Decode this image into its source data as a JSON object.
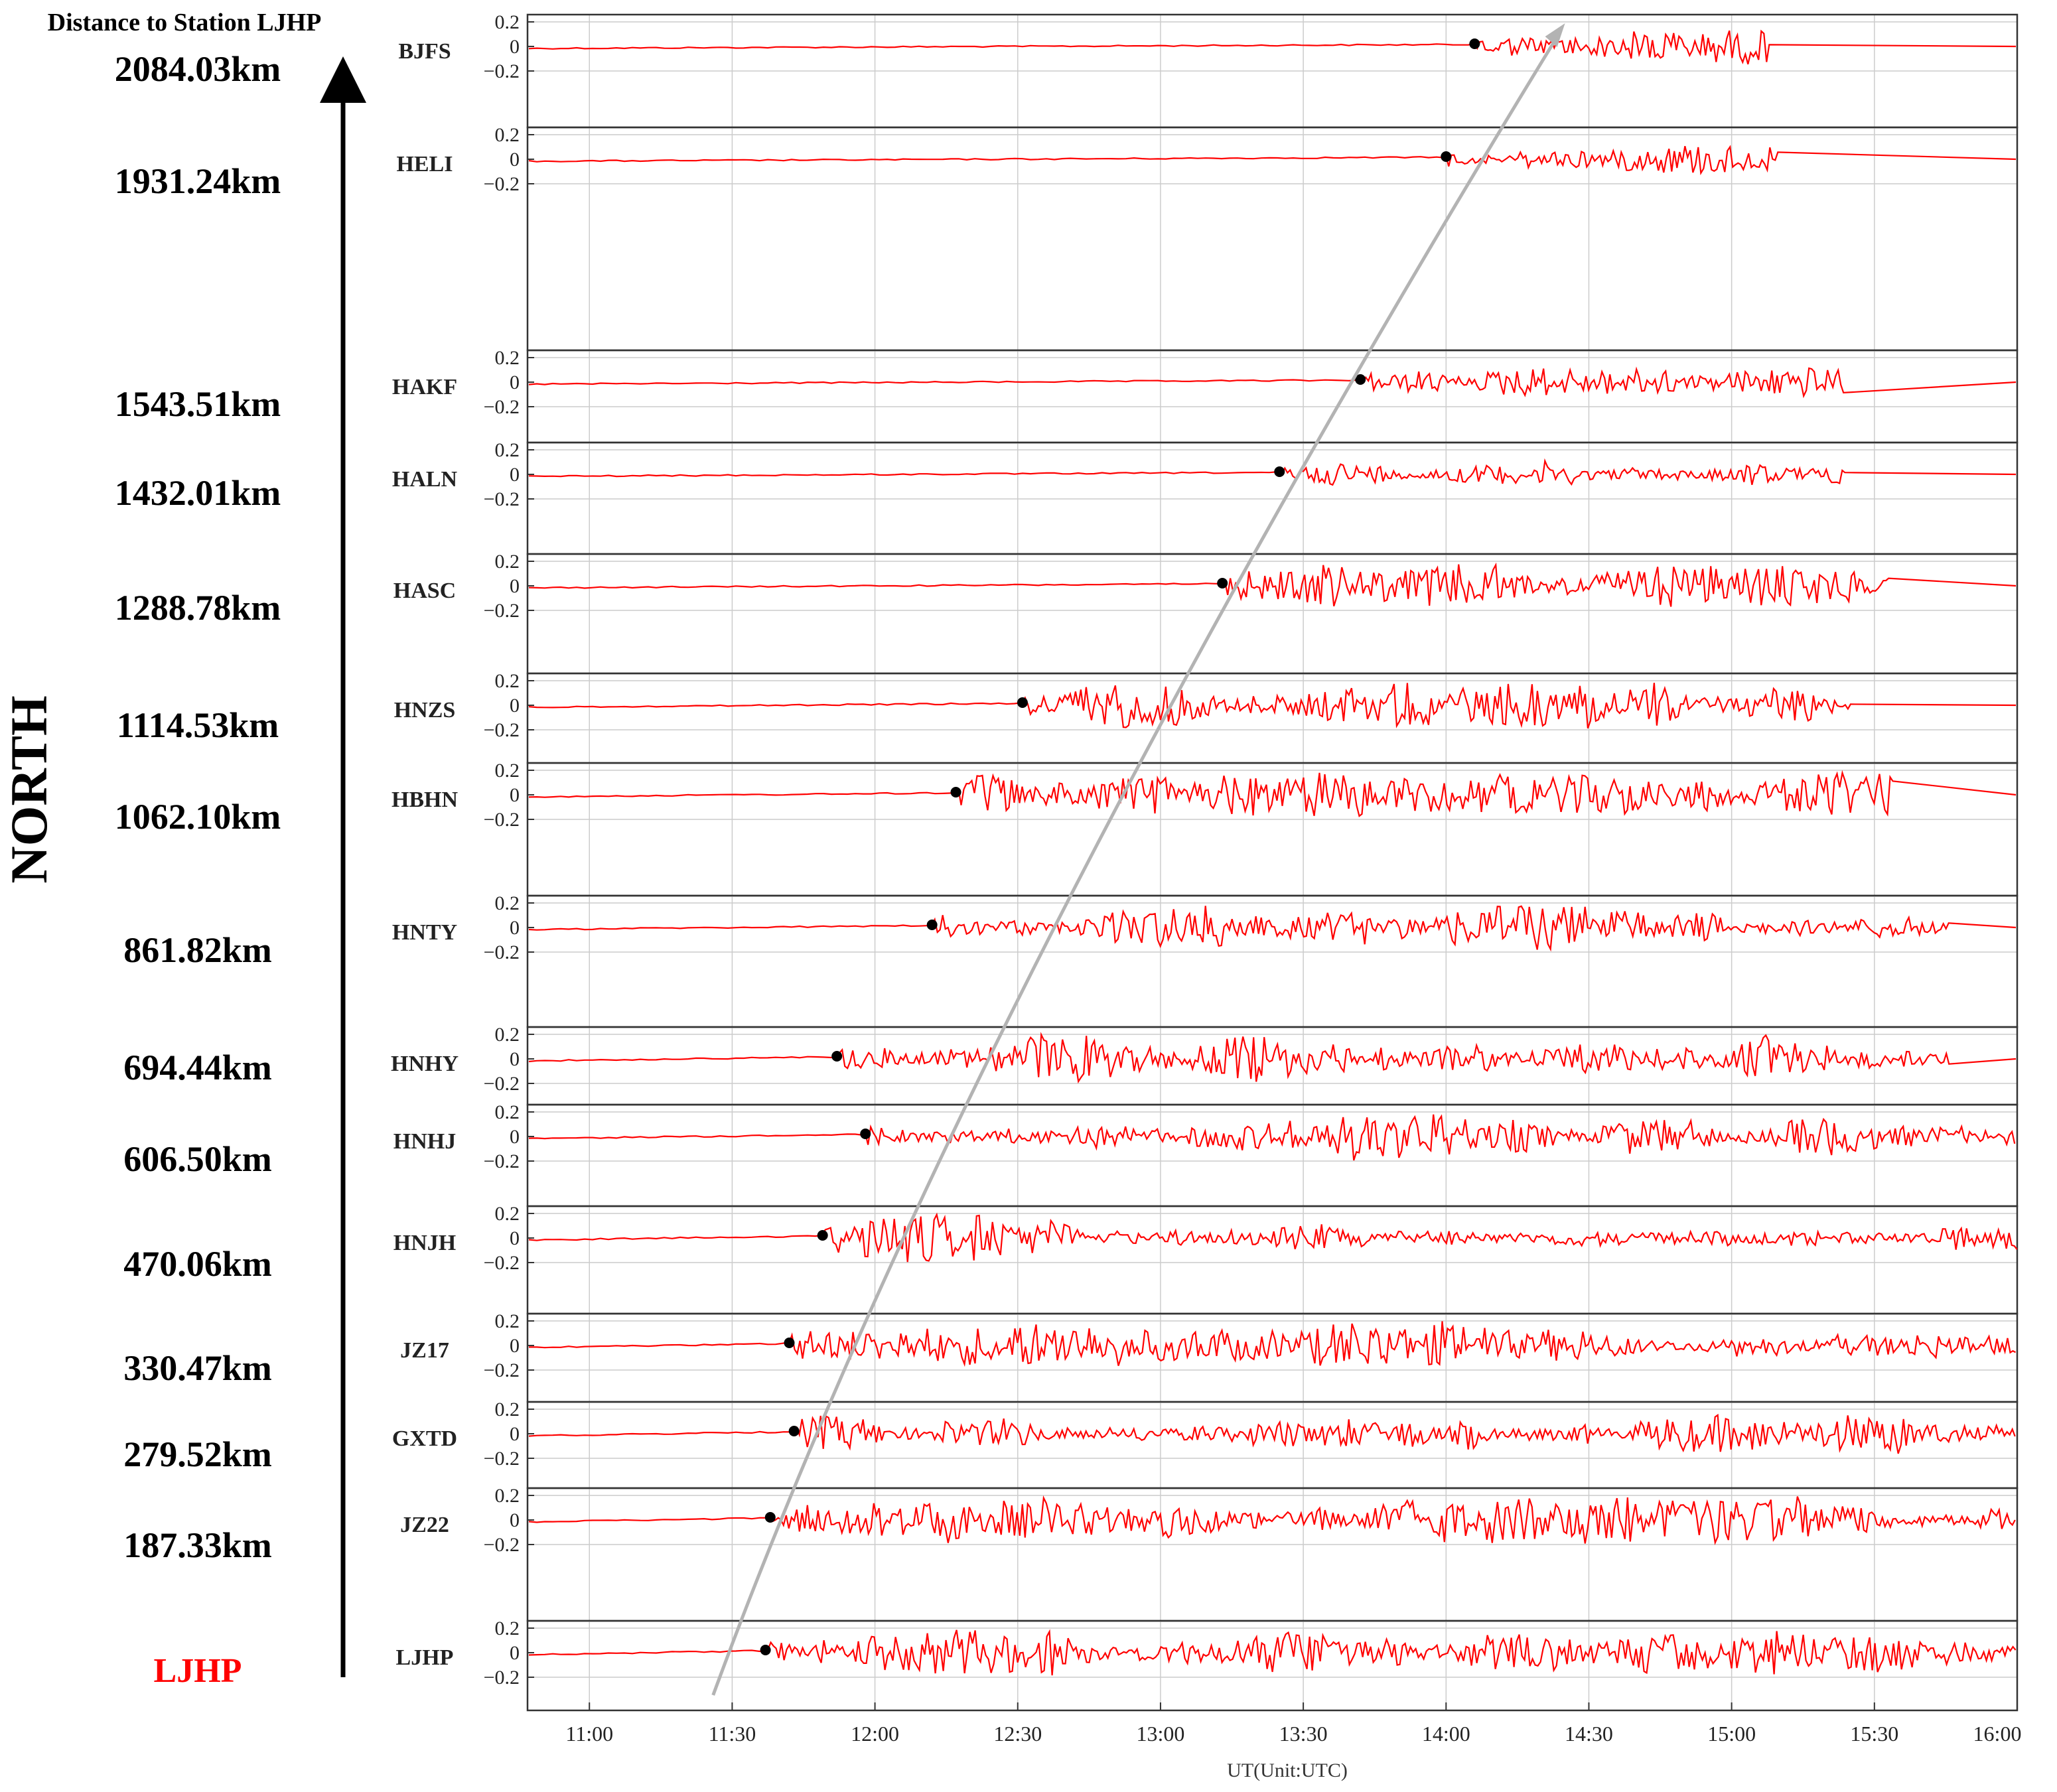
{
  "header": {
    "title": "Distance to Station LJHP"
  },
  "north_label": "NORTH",
  "colors": {
    "trace": "#ff0000",
    "arrival": "#000000",
    "trend": "#b3b3b3",
    "grid": "#cccccc",
    "reference": "#ff0000"
  },
  "chart_data": {
    "type": "line",
    "title": "Distance to Station LJHP",
    "xlabel": "UT(Unit:UTC)",
    "x_ticks": [
      "11:00",
      "11:30",
      "12:00",
      "12:30",
      "13:00",
      "13:30",
      "14:00",
      "14:30",
      "15:00",
      "15:30",
      "16:00"
    ],
    "xlim": [
      "10:47",
      "16:00"
    ],
    "y_ticks": [
      "0.2",
      "0",
      "−0.2"
    ],
    "ylim": [
      -0.35,
      0.35
    ],
    "grid": true,
    "reference_station": "LJHP",
    "stations": [
      {
        "name": "BJFS",
        "distance": "2084.03km",
        "arrival": "14:06",
        "end": "15:08",
        "amp": 0.12
      },
      {
        "name": "HELI",
        "distance": "1931.24km",
        "arrival": "14:00",
        "end": "15:10",
        "amp": 0.12
      },
      {
        "name": "HAKF",
        "distance": "1543.51km",
        "arrival": "13:42",
        "end": "15:24",
        "amp": 0.12
      },
      {
        "name": "HALN",
        "distance": "1432.01km",
        "arrival": "13:25",
        "end": "15:24",
        "amp": 0.14
      },
      {
        "name": "HASC",
        "distance": "1288.78km",
        "arrival": "13:13",
        "end": "15:33",
        "amp": 0.14
      },
      {
        "name": "HNZS",
        "distance": "1114.53km",
        "arrival": "12:31",
        "end": "15:25",
        "amp": 0.15
      },
      {
        "name": "HBHN",
        "distance": "1062.10km",
        "arrival": "12:17",
        "end": "15:34",
        "amp": 0.15
      },
      {
        "name": "HNTY",
        "distance": "861.82km",
        "arrival": "12:12",
        "end": "15:46",
        "amp": 0.16
      },
      {
        "name": "HNHY",
        "distance": "694.44km",
        "arrival": "11:52",
        "end": "15:46",
        "amp": 0.16
      },
      {
        "name": "HNHJ",
        "distance": "606.50km",
        "arrival": "11:58",
        "end": "16:00",
        "amp": 0.16
      },
      {
        "name": "HNJH",
        "distance": "470.06km",
        "arrival": "11:49",
        "end": "16:00",
        "amp": 0.16
      },
      {
        "name": "JZ17",
        "distance": "330.47km",
        "arrival": "11:42",
        "end": "16:00",
        "amp": 0.16
      },
      {
        "name": "GXTD",
        "distance": "279.52km",
        "arrival": "11:43",
        "end": "16:00",
        "amp": 0.15
      },
      {
        "name": "JZ22",
        "distance": "187.33km",
        "arrival": "11:38",
        "end": "16:00",
        "amp": 0.16
      },
      {
        "name": "LJHP",
        "distance": "LJHP",
        "arrival": "11:37",
        "end": "16:00",
        "amp": 0.15
      }
    ],
    "trend_line": {
      "start_time": "11:26",
      "end_time": "14:25"
    }
  }
}
